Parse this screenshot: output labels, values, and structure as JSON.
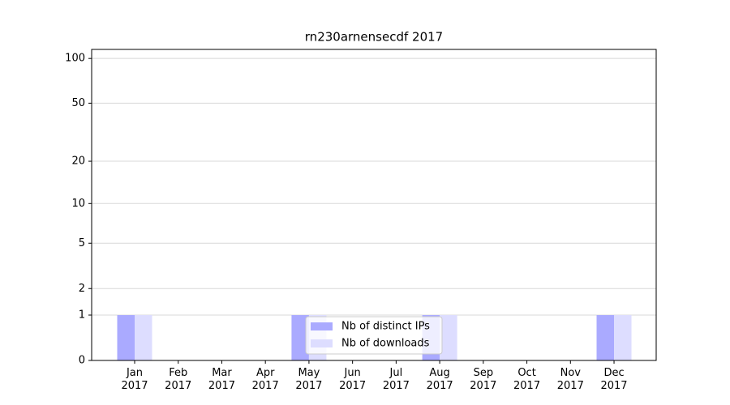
{
  "chart_data": {
    "type": "bar",
    "title": "rn230arnensecdf 2017",
    "categories": [
      "Jan 2017",
      "Feb 2017",
      "Mar 2017",
      "Apr 2017",
      "May 2017",
      "Jun 2017",
      "Jul 2017",
      "Aug 2017",
      "Sep 2017",
      "Oct 2017",
      "Nov 2017",
      "Dec 2017"
    ],
    "series": [
      {
        "name": "Nb of distinct IPs",
        "color": "#aaaaff",
        "values": [
          1,
          0,
          0,
          0,
          1,
          0,
          0,
          1,
          0,
          0,
          0,
          1
        ]
      },
      {
        "name": "Nb of downloads",
        "color": "#ddddff",
        "values": [
          1,
          0,
          0,
          0,
          1,
          0,
          0,
          1,
          0,
          0,
          0,
          1
        ]
      }
    ],
    "yscale": "log1p",
    "ylim": [
      0,
      115
    ],
    "yticks": [
      0,
      1,
      2,
      5,
      10,
      20,
      50,
      100
    ],
    "grid": true,
    "legend": "lower center"
  }
}
